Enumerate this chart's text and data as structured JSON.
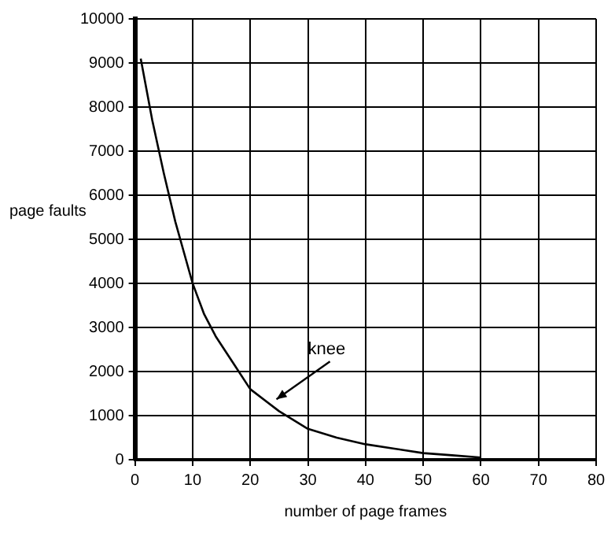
{
  "chart_data": {
    "type": "line",
    "xlabel": "number of page frames",
    "ylabel": "page faults",
    "x": [
      1,
      3,
      5,
      7,
      10,
      12,
      14,
      17,
      20,
      25,
      30,
      35,
      40,
      45,
      50,
      55,
      60
    ],
    "series": [
      {
        "color": "#000000",
        "values": [
          9100,
          7700,
          6500,
          5400,
          4000,
          3300,
          2800,
          2200,
          1600,
          1100,
          700,
          500,
          350,
          250,
          150,
          100,
          50
        ]
      }
    ],
    "xlim": [
      0,
      80
    ],
    "xticks": [
      0,
      10,
      20,
      30,
      40,
      50,
      60,
      70,
      80
    ],
    "ylim": [
      0,
      10000
    ],
    "yticks": [
      0,
      1000,
      2000,
      3000,
      4000,
      5000,
      6000,
      7000,
      8000,
      9000,
      10000
    ],
    "grid": true,
    "legend": false,
    "marker": "none",
    "line_style": "solid",
    "annotations": [
      {
        "text": "knee",
        "x": 24,
        "y": 1300
      }
    ]
  }
}
